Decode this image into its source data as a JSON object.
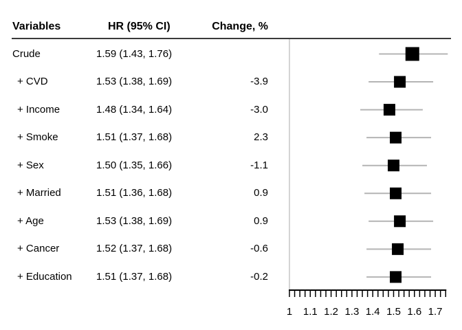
{
  "figure": {
    "columns": {
      "variables": "Variables",
      "hr": "HR (95% CI)",
      "change": "Change, %"
    }
  },
  "chart_data": {
    "type": "forest",
    "title": "",
    "columns": [
      "Variables",
      "HR (95% CI)",
      "Change, %"
    ],
    "rows": [
      {
        "variable": "Crude",
        "hr": 1.59,
        "ci_low": 1.43,
        "ci_high": 1.76,
        "hr_label": "1.59 (1.43, 1.76)",
        "change": "",
        "marker_size": 20,
        "indent": false
      },
      {
        "variable": "+ CVD",
        "hr": 1.53,
        "ci_low": 1.38,
        "ci_high": 1.69,
        "hr_label": "1.53 (1.38, 1.69)",
        "change": "-3.9",
        "marker_size": 17,
        "indent": true
      },
      {
        "variable": "+ Income",
        "hr": 1.48,
        "ci_low": 1.34,
        "ci_high": 1.64,
        "hr_label": "1.48 (1.34, 1.64)",
        "change": "-3.0",
        "marker_size": 17,
        "indent": true
      },
      {
        "variable": "+ Smoke",
        "hr": 1.51,
        "ci_low": 1.37,
        "ci_high": 1.68,
        "hr_label": "1.51 (1.37, 1.68)",
        "change": "2.3",
        "marker_size": 17,
        "indent": true
      },
      {
        "variable": "+ Sex",
        "hr": 1.5,
        "ci_low": 1.35,
        "ci_high": 1.66,
        "hr_label": "1.50 (1.35, 1.66)",
        "change": "-1.1",
        "marker_size": 17,
        "indent": true
      },
      {
        "variable": "+ Married",
        "hr": 1.51,
        "ci_low": 1.36,
        "ci_high": 1.68,
        "hr_label": "1.51 (1.36, 1.68)",
        "change": "0.9",
        "marker_size": 17,
        "indent": true
      },
      {
        "variable": "+ Age",
        "hr": 1.53,
        "ci_low": 1.38,
        "ci_high": 1.69,
        "hr_label": "1.53 (1.38, 1.69)",
        "change": "0.9",
        "marker_size": 17,
        "indent": true
      },
      {
        "variable": "+ Cancer",
        "hr": 1.52,
        "ci_low": 1.37,
        "ci_high": 1.68,
        "hr_label": "1.52 (1.37, 1.68)",
        "change": "-0.6",
        "marker_size": 17,
        "indent": true
      },
      {
        "variable": "+ Education",
        "hr": 1.51,
        "ci_low": 1.37,
        "ci_high": 1.68,
        "hr_label": "1.51 (1.37, 1.68)",
        "change": "-0.2",
        "marker_size": 17,
        "indent": true
      }
    ],
    "axis": {
      "min": 1,
      "max": 1.75,
      "minor_tick_step": 0.025,
      "major_label_step": 0.1,
      "tick_labels": [
        "1",
        "1.1",
        "1.2",
        "1.3",
        "1.4",
        "1.5",
        "1.6",
        "1.7"
      ],
      "orientation": "horizontal"
    },
    "reference_line": 1,
    "legend": null,
    "grid": false,
    "colors": {
      "marker": "#000000",
      "ci_line": "#b4b4b4",
      "reference_line": "#c6c6c6",
      "axis": "#000000",
      "text": "#000000",
      "divider": "#3a3a3a"
    }
  }
}
